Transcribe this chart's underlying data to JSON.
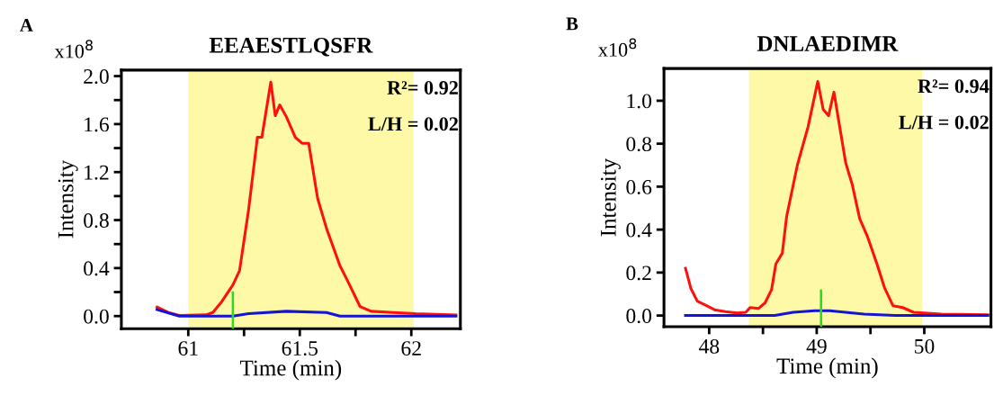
{
  "chart_data": [
    {
      "type": "line",
      "title": "EEAESTLQSFR",
      "xlabel": "Time (min)",
      "ylabel": "Intensity",
      "annotations": [
        "A",
        "x10$^{8}$",
        "R²= 0.92",
        "L/H = 0.02"
      ],
      "xlim": [
        60.7,
        62.22
      ],
      "ylim": [
        -0.105,
        2.05
      ],
      "xticks": [
        61,
        {
          "value": 61.25,
          "label": null
        },
        61.5,
        {
          "value": 61.75,
          "label": null
        },
        62
      ],
      "yticks": [
        {
          "value": 0,
          "label": "0.0"
        },
        {
          "value": 0.2,
          "label": null
        },
        {
          "value": 0.4,
          "label": "0.4"
        },
        {
          "value": 0.6,
          "label": null
        },
        {
          "value": 0.8,
          "label": "0.8"
        },
        {
          "value": 1.0,
          "label": null
        },
        {
          "value": 1.2,
          "label": "1.2"
        },
        {
          "value": 1.4,
          "label": null
        },
        {
          "value": 1.6,
          "label": "1.6"
        },
        {
          "value": 1.8,
          "label": null
        },
        {
          "value": 2.0,
          "label": "2.0"
        }
      ],
      "bands": [
        {
          "axis": "x",
          "from": 61.0,
          "to": 62.01,
          "color": "#fdf9a6"
        }
      ],
      "ref_lines": [
        {
          "axis": "x",
          "value": 61.2,
          "color": "#22dd22"
        }
      ],
      "series": [
        {
          "color": "#ff1010",
          "x": [
            60.86,
            60.91,
            60.96,
            61.08,
            61.11,
            61.15,
            61.2,
            61.23,
            61.27,
            61.31,
            61.33,
            61.37,
            61.39,
            61.41,
            61.44,
            61.48,
            61.51,
            61.54,
            61.58,
            61.62,
            61.68,
            61.71,
            61.77,
            61.82,
            61.92,
            62.02,
            62.2
          ],
          "values": [
            0.075,
            0.03,
            0.005,
            0.01,
            0.03,
            0.12,
            0.26,
            0.38,
            0.88,
            1.49,
            1.49,
            1.95,
            1.67,
            1.76,
            1.66,
            1.49,
            1.44,
            1.44,
            0.98,
            0.73,
            0.42,
            0.31,
            0.08,
            0.04,
            0.03,
            0.02,
            0.01
          ]
        },
        {
          "color": "#1414d2",
          "x": [
            60.86,
            60.96,
            61.2,
            61.27,
            61.44,
            61.62,
            61.68,
            62.2
          ],
          "values": [
            0.055,
            0.0,
            0.0,
            0.02,
            0.04,
            0.03,
            0.0,
            0.0
          ]
        }
      ]
    },
    {
      "type": "line",
      "title": "DNLAEDIMR",
      "xlabel": "Time (min)",
      "ylabel": "Intensity",
      "annotations": [
        "B",
        "x10$^{8}$",
        "R²= 0.94",
        "L/H = 0.02"
      ],
      "xlim": [
        47.58,
        50.62
      ],
      "ylim": [
        -0.052,
        1.15
      ],
      "xticks": [
        48,
        {
          "value": 48.5,
          "label": null
        },
        49,
        {
          "value": 49.5,
          "label": null
        },
        50
      ],
      "yticks": [
        {
          "value": 0,
          "label": "0.0"
        },
        0.2,
        0.4,
        0.6,
        0.8,
        {
          "value": 1.0,
          "label": "1.0"
        }
      ],
      "bands": [
        {
          "axis": "x",
          "from": 48.37,
          "to": 49.98,
          "color": "#fdf9a6"
        }
      ],
      "ref_lines": [
        {
          "axis": "x",
          "value": 49.04,
          "color": "#22dd22"
        }
      ],
      "series": [
        {
          "color": "#ff1010",
          "x": [
            47.78,
            47.83,
            47.89,
            47.98,
            48.05,
            48.15,
            48.26,
            48.34,
            48.38,
            48.46,
            48.52,
            48.58,
            48.62,
            48.68,
            48.72,
            48.82,
            48.92,
            49.01,
            49.06,
            49.11,
            49.16,
            49.27,
            49.33,
            49.4,
            49.47,
            49.56,
            49.63,
            49.71,
            49.8,
            49.9,
            50.16,
            50.59
          ],
          "values": [
            0.22,
            0.126,
            0.067,
            0.045,
            0.027,
            0.018,
            0.012,
            0.015,
            0.037,
            0.033,
            0.059,
            0.12,
            0.24,
            0.29,
            0.46,
            0.7,
            0.88,
            1.09,
            0.96,
            0.93,
            1.04,
            0.71,
            0.61,
            0.45,
            0.37,
            0.24,
            0.13,
            0.045,
            0.037,
            0.015,
            0.007,
            0.003
          ]
        },
        {
          "color": "#1414d2",
          "x": [
            47.78,
            48.61,
            48.78,
            48.98,
            49.12,
            49.44,
            49.73,
            50.59
          ],
          "values": [
            0.0,
            0.0,
            0.015,
            0.022,
            0.022,
            0.007,
            0.0,
            0.0
          ]
        }
      ]
    }
  ]
}
